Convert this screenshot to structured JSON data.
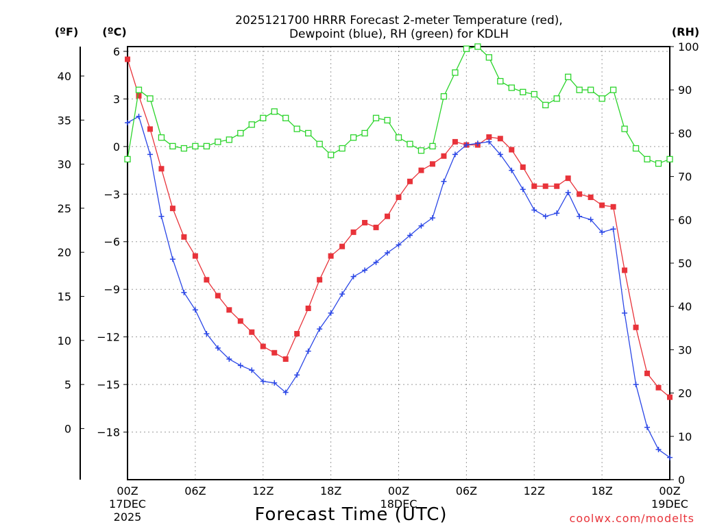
{
  "chart_data": {
    "type": "line",
    "title_line1": "2025121700 HRRR Forecast 2-meter Temperature (red),",
    "title_line2": "Dewpoint (blue), RH (green) for KDLH",
    "xlabel": "Forecast Time (UTC)",
    "credit": "coolwx.com/modelts",
    "units": {
      "fahrenheit": "(ºF)",
      "celsius": "(ºC)",
      "rh": "(RH)"
    },
    "x_range_hours": [
      0,
      48
    ],
    "x_ticks": [
      {
        "h": 0,
        "label": "00Z",
        "sub1": "17DEC",
        "sub2": "2025"
      },
      {
        "h": 6,
        "label": "06Z"
      },
      {
        "h": 12,
        "label": "12Z"
      },
      {
        "h": 18,
        "label": "18Z"
      },
      {
        "h": 24,
        "label": "00Z",
        "sub1": "18DEC"
      },
      {
        "h": 30,
        "label": "06Z"
      },
      {
        "h": 36,
        "label": "12Z"
      },
      {
        "h": 42,
        "label": "18Z"
      },
      {
        "h": 48,
        "label": "00Z",
        "sub1": "19DEC"
      }
    ],
    "celsius_axis": {
      "min": -21,
      "max": 6.3,
      "ticks": [
        6,
        3,
        0,
        -3,
        -6,
        -9,
        -12,
        -15,
        -18
      ]
    },
    "fahrenheit_axis": {
      "ticks": [
        40,
        35,
        30,
        25,
        20,
        15,
        10,
        5,
        0
      ]
    },
    "rh_axis": {
      "min": 0,
      "max": 100,
      "ticks": [
        100,
        90,
        80,
        70,
        60,
        50,
        40,
        30,
        20,
        10,
        0
      ]
    },
    "series": [
      {
        "name": "2-meter Temperature",
        "axis": "celsius",
        "color": "#e8333a",
        "marker": "filled-square",
        "values": [
          5.5,
          3.2,
          1.1,
          -1.4,
          -3.9,
          -5.7,
          -6.9,
          -8.4,
          -9.4,
          -10.3,
          -11.0,
          -11.7,
          -12.6,
          -13.0,
          -13.4,
          -11.8,
          -10.2,
          -8.4,
          -6.9,
          -6.3,
          -5.4,
          -4.8,
          -5.1,
          -4.4,
          -3.2,
          -2.2,
          -1.5,
          -1.1,
          -0.6,
          0.3,
          0.1,
          0.1,
          0.6,
          0.5,
          -0.2,
          -1.3,
          -2.5,
          -2.5,
          -2.5,
          -2.0,
          -3.0,
          -3.2,
          -3.7,
          -3.8,
          -7.8,
          -11.4,
          -14.3,
          -15.2,
          -15.8
        ]
      },
      {
        "name": "Dewpoint",
        "axis": "celsius",
        "color": "#2a46e6",
        "marker": "plus",
        "values": [
          1.5,
          1.9,
          -0.5,
          -4.4,
          -7.1,
          -9.2,
          -10.3,
          -11.8,
          -12.7,
          -13.4,
          -13.8,
          -14.1,
          -14.8,
          -14.9,
          -15.5,
          -14.4,
          -12.9,
          -11.5,
          -10.5,
          -9.3,
          -8.2,
          -7.8,
          -7.3,
          -6.7,
          -6.2,
          -5.6,
          -5.0,
          -4.5,
          -2.2,
          -0.5,
          0.1,
          0.2,
          0.3,
          -0.5,
          -1.5,
          -2.7,
          -4.0,
          -4.4,
          -4.2,
          -2.9,
          -4.4,
          -4.6,
          -5.4,
          -5.2,
          -10.5,
          -15.0,
          -17.7,
          -19.1,
          -19.6
        ]
      },
      {
        "name": "RH",
        "axis": "rh",
        "color": "#2bd42b",
        "marker": "open-square",
        "values": [
          74,
          90,
          88,
          79,
          77,
          76.5,
          77,
          77,
          78,
          78.5,
          80,
          82,
          83.5,
          85,
          83.5,
          81,
          80,
          77.5,
          75,
          76.5,
          79,
          80,
          83.5,
          83,
          79,
          77.5,
          76,
          77,
          88.5,
          94,
          99.5,
          100,
          97.5,
          92,
          90.5,
          89.5,
          89,
          86.5,
          88,
          93,
          90,
          90,
          88,
          90,
          81,
          76.5,
          74,
          73,
          74
        ]
      }
    ]
  }
}
